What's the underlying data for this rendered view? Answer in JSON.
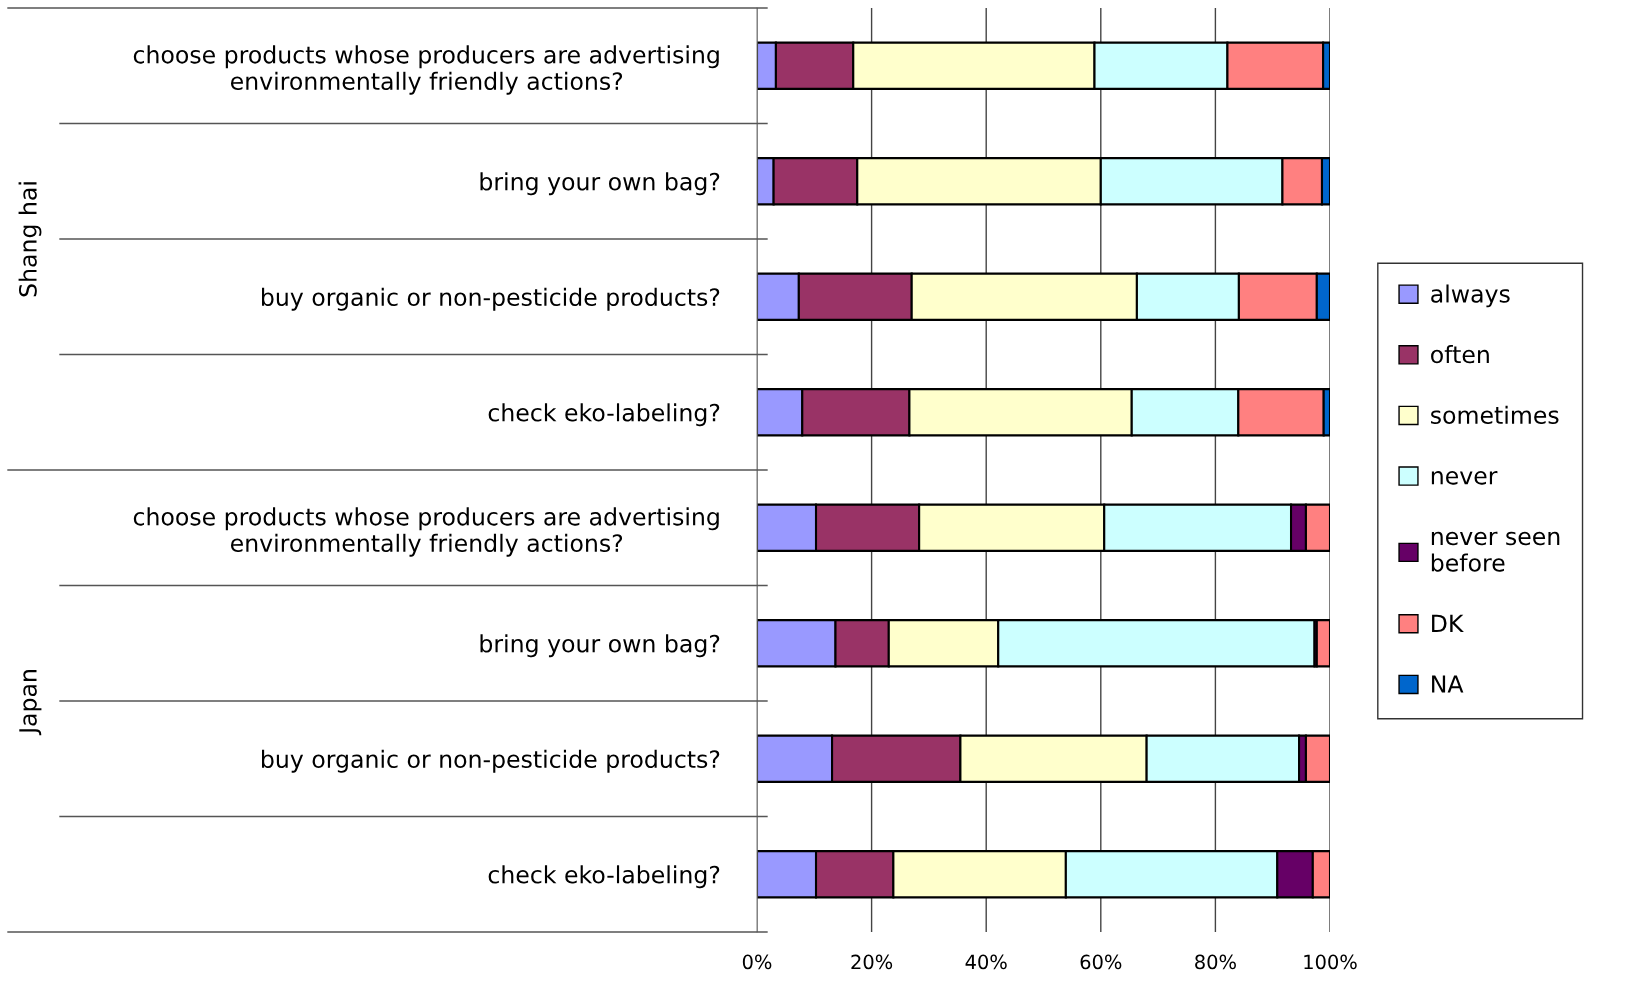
{
  "chart_data": {
    "type": "bar",
    "orientation": "horizontal",
    "stacked": true,
    "categories": [
      "choose products whose producers are advertising\nenvironmentally friendly actions?",
      "bring your own bag?",
      "buy organic or non-pesticide products?",
      "check eko-labeling?",
      "choose products whose producers are advertising\nenvironmentally friendly actions?",
      "bring your own bag?",
      "buy organic or non-pesticide products?",
      "check eko-labeling?"
    ],
    "annotations": [
      "Shang hai",
      "Japan"
    ],
    "series": [
      {
        "name": "always",
        "color": "#9999ff",
        "values": [
          3.3,
          2.9,
          7.3,
          7.9,
          10.3,
          13.7,
          13.1,
          10.3
        ]
      },
      {
        "name": "often",
        "color": "#993366",
        "values": [
          13.5,
          14.6,
          19.7,
          18.7,
          18.0,
          9.3,
          22.4,
          13.5
        ]
      },
      {
        "name": "sometimes",
        "color": "#ffffcc",
        "values": [
          42.1,
          42.5,
          39.3,
          38.8,
          32.3,
          19.1,
          32.5,
          30.1
        ]
      },
      {
        "name": "never",
        "color": "#ccffff",
        "values": [
          23.2,
          31.7,
          17.8,
          18.6,
          32.6,
          55.2,
          26.6,
          36.9
        ]
      },
      {
        "name": "never seen\nbefore",
        "color": "#660066",
        "values": [
          0,
          0,
          0,
          0,
          2.6,
          0.4,
          1.2,
          6.2
        ]
      },
      {
        "name": "DK",
        "color": "#ff8080",
        "values": [
          16.7,
          6.9,
          13.6,
          14.9,
          4.2,
          2.3,
          4.2,
          3.0
        ]
      },
      {
        "name": "NA",
        "color": "#0066cc",
        "values": [
          1.2,
          1.4,
          2.3,
          1.1,
          0,
          0,
          0,
          0
        ]
      }
    ],
    "xlim": [
      0,
      100
    ],
    "xticks": [
      {
        "value": 0,
        "label": "0%"
      },
      {
        "value": 20,
        "label": "20%"
      },
      {
        "value": 40,
        "label": "40%"
      },
      {
        "value": 60,
        "label": "60%"
      },
      {
        "value": 80,
        "label": "80%"
      },
      {
        "value": 100,
        "label": "100%"
      }
    ],
    "grid": "x",
    "legend": "right"
  }
}
